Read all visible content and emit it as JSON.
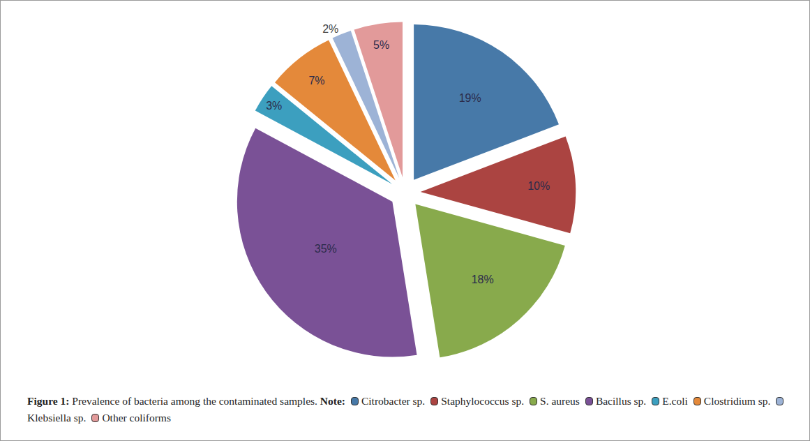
{
  "chart_data": {
    "type": "pie",
    "figure_label": "Figure 1:",
    "title": "Prevalence of bacteria among the contaminated samples.",
    "note_label": "Note:",
    "categories": [
      "Citrobacter sp.",
      "Staphylococcus sp.",
      "S. aureus",
      "Bacillus sp.",
      "E.coli",
      "Clostridium sp.",
      "Klebsiella sp.",
      "Other coliforms"
    ],
    "values": [
      19,
      10,
      18,
      35,
      3,
      7,
      2,
      5
    ],
    "value_labels": [
      "19%",
      "10%",
      "18%",
      "35%",
      "3%",
      "7%",
      "2%",
      "5%"
    ],
    "colors": [
      "#4779a8",
      "#ab4441",
      "#88aa4c",
      "#7a5196",
      "#3c9fbf",
      "#e4893a",
      "#9db3d6",
      "#e29a9a"
    ],
    "data_labels": true
  }
}
